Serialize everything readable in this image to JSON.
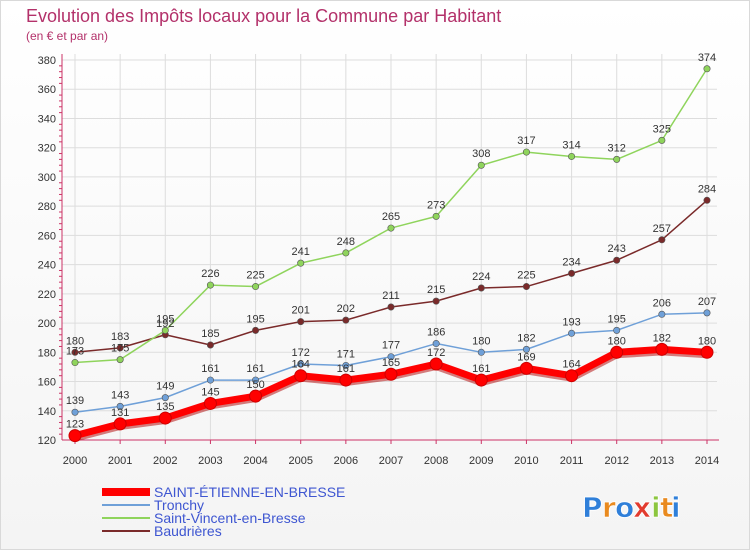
{
  "chart_data": {
    "type": "line",
    "title": "Evolution des Impôts locaux pour la Commune par Habitant",
    "subtitle": "(en € et par an)",
    "x": [
      2000,
      2001,
      2002,
      2003,
      2004,
      2005,
      2006,
      2007,
      2008,
      2009,
      2010,
      2011,
      2012,
      2013,
      2014
    ],
    "ylim": [
      120,
      380
    ],
    "yticks": [
      120,
      140,
      160,
      180,
      200,
      220,
      240,
      260,
      280,
      300,
      320,
      340,
      360,
      380
    ],
    "grid": true,
    "legend_position": "bottom-left",
    "series": [
      {
        "name": "SAINT-ÉTIENNE-EN-BRESSE",
        "color": "#ff0000",
        "values": [
          123,
          131,
          135,
          145,
          150,
          164,
          161,
          165,
          172,
          161,
          169,
          164,
          180,
          182,
          180
        ]
      },
      {
        "name": "Tronchy",
        "color": "#6fa0d8",
        "values": [
          139,
          143,
          149,
          161,
          161,
          172,
          171,
          177,
          186,
          180,
          182,
          193,
          195,
          206,
          207
        ]
      },
      {
        "name": "Saint-Vincent-en-Bresse",
        "color": "#8fd45c",
        "values": [
          173,
          175,
          195,
          226,
          225,
          241,
          248,
          265,
          273,
          308,
          317,
          314,
          312,
          325,
          374
        ]
      },
      {
        "name": "Baudrières",
        "color": "#7a2a2a",
        "values": [
          180,
          183,
          192,
          185,
          195,
          201,
          202,
          211,
          215,
          224,
          225,
          234,
          243,
          257,
          284
        ]
      }
    ]
  },
  "logo": {
    "text": "Proxiti",
    "letters": [
      "P",
      "r",
      "o",
      "x",
      "i",
      "t",
      "i"
    ],
    "colors": [
      "#2f7fd9",
      "#e98a1f",
      "#2f7fd9",
      "#e23b2e",
      "#8cc63f",
      "#e98a1f",
      "#2f7fd9"
    ]
  }
}
